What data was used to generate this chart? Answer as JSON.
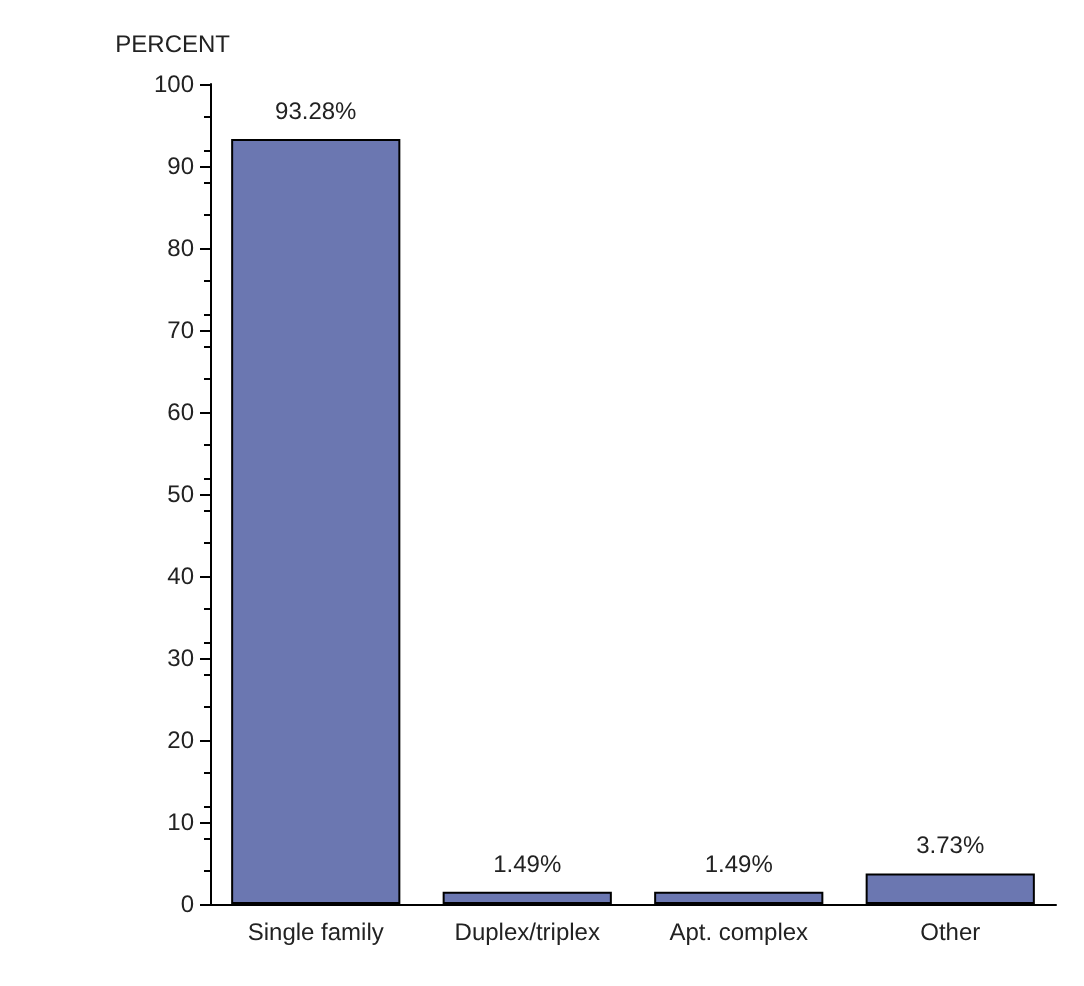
{
  "chart_data": {
    "type": "bar",
    "ylabel": "PERCENT",
    "categories": [
      "Single family",
      "Duplex/triplex",
      "Apt. complex",
      "Other"
    ],
    "values": [
      93.28,
      1.49,
      1.49,
      3.73
    ],
    "value_labels": [
      "93.28%",
      "1.49%",
      "1.49%",
      "3.73%"
    ],
    "color": "#6b77b1",
    "ylim": [
      0,
      100
    ],
    "yticks": [
      0,
      10,
      20,
      30,
      40,
      50,
      60,
      70,
      80,
      90,
      100
    ],
    "grid": false
  }
}
